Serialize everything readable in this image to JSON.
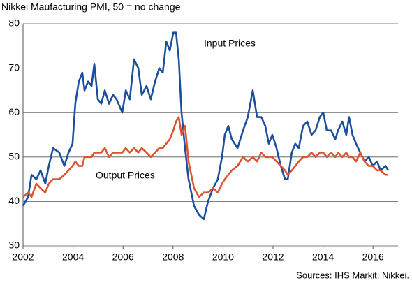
{
  "chart_data": {
    "type": "line",
    "title": "Nikkei Maufacturing PMI, 50 = no change",
    "source": "Sources: IHS Markit, Nikkei.",
    "annotations": [
      "Input Prices",
      "Output Prices"
    ],
    "x": [
      2002.0,
      2002.2,
      2002.34,
      2002.53,
      2002.7,
      2002.89,
      2003.03,
      2003.2,
      2003.45,
      2003.65,
      2003.82,
      2003.98,
      2004.09,
      2004.23,
      2004.37,
      2004.46,
      2004.6,
      2004.74,
      2004.85,
      2004.99,
      2005.13,
      2005.27,
      2005.44,
      2005.6,
      2005.74,
      2005.97,
      2006.11,
      2006.27,
      2006.44,
      2006.61,
      2006.75,
      2006.94,
      2007.11,
      2007.28,
      2007.45,
      2007.59,
      2007.73,
      2007.87,
      2008.01,
      2008.12,
      2008.23,
      2008.34,
      2008.48,
      2008.62,
      2008.84,
      2009.04,
      2009.23,
      2009.4,
      2009.6,
      2009.79,
      2009.96,
      2010.07,
      2010.21,
      2010.35,
      2010.58,
      2010.8,
      2010.99,
      2011.19,
      2011.36,
      2011.53,
      2011.69,
      2011.83,
      2011.97,
      2012.14,
      2012.31,
      2012.48,
      2012.59,
      2012.75,
      2012.89,
      2013.03,
      2013.2,
      2013.37,
      2013.54,
      2013.7,
      2013.87,
      2014.01,
      2014.15,
      2014.32,
      2014.49,
      2014.6,
      2014.77,
      2014.93,
      2015.04,
      2015.18,
      2015.32,
      2015.49,
      2015.66,
      2015.83,
      2015.99,
      2016.16,
      2016.3,
      2016.5,
      2016.61
    ],
    "series": [
      {
        "name": "Input Prices",
        "color": "#1b4f9c",
        "values": [
          39,
          41,
          46,
          45,
          47,
          44,
          48,
          52,
          51,
          48,
          51,
          53,
          62,
          67,
          69,
          65,
          67,
          66,
          71,
          63,
          62,
          65,
          62,
          64,
          63,
          60,
          65,
          63,
          72,
          70,
          64,
          66,
          63,
          67,
          70,
          69,
          76,
          74,
          78,
          78,
          72,
          60,
          52,
          45,
          39,
          37,
          36,
          40,
          43,
          45,
          50,
          55,
          57,
          54,
          52,
          56,
          59,
          65,
          59,
          59,
          57,
          53,
          55,
          52,
          48,
          45,
          45,
          51,
          53,
          52,
          57,
          58,
          55,
          56,
          59,
          60,
          56,
          56,
          54,
          56,
          58,
          55,
          59,
          55,
          53,
          51,
          49,
          50,
          48,
          49,
          47,
          48,
          47
        ]
      },
      {
        "name": "Output Prices",
        "color": "#dd5430",
        "values": [
          41,
          42,
          41,
          44,
          43,
          42,
          44,
          45,
          45,
          46,
          47,
          48,
          49,
          48,
          48,
          50,
          50,
          50,
          51,
          51,
          51,
          52,
          50,
          51,
          51,
          51,
          52,
          51,
          52,
          51,
          52,
          51,
          50,
          51,
          52,
          52,
          53,
          54,
          56,
          58,
          59,
          55,
          57,
          49,
          43,
          41,
          42,
          42,
          43,
          42,
          44,
          45,
          46,
          47,
          48,
          50,
          49,
          50,
          49,
          51,
          50,
          50,
          50,
          49,
          48,
          47,
          46,
          47,
          48,
          49,
          50,
          50,
          51,
          50,
          51,
          51,
          50,
          51,
          50,
          51,
          50,
          51,
          50,
          50,
          49,
          51,
          49,
          48,
          48,
          47,
          47,
          46,
          46
        ]
      }
    ],
    "xlim": [
      2002,
      2017
    ],
    "xticks": [
      2002,
      2004,
      2006,
      2008,
      2010,
      2012,
      2014,
      2016
    ],
    "ylim": [
      30,
      80
    ],
    "yticks": [
      30,
      40,
      50,
      60,
      70,
      80
    ],
    "grid": true
  }
}
